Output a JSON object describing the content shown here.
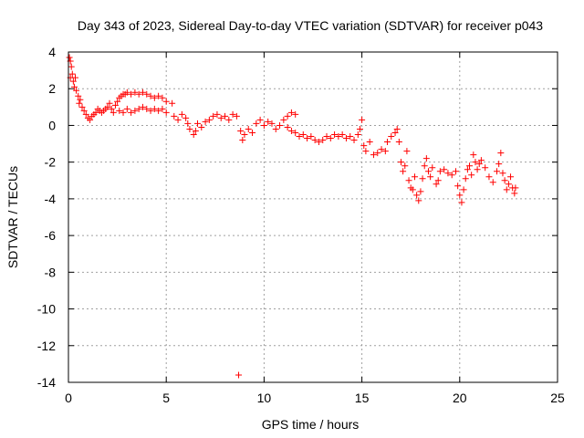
{
  "chart_data": {
    "type": "scatter",
    "title": "Day 343 of 2023, Sidereal Day-to-day VTEC variation (SDTVAR) for receiver p043",
    "xlabel": "GPS time / hours",
    "ylabel": "SDTVAR / TECUs",
    "xlim": [
      0,
      25
    ],
    "ylim": [
      -14,
      4
    ],
    "x_ticks": [
      0,
      5,
      10,
      15,
      20,
      25
    ],
    "y_ticks": [
      4,
      2,
      0,
      -2,
      -4,
      -6,
      -8,
      -10,
      -12,
      -14
    ],
    "grid": true,
    "marker": "+",
    "series_color": "#ff0000",
    "series": [
      {
        "name": "SDTVAR",
        "points": [
          [
            0.05,
            3.7
          ],
          [
            0.1,
            3.5
          ],
          [
            0.15,
            3.2
          ],
          [
            0.1,
            2.6
          ],
          [
            0.2,
            2.8
          ],
          [
            0.25,
            2.4
          ],
          [
            0.3,
            2.1
          ],
          [
            0.35,
            2.6
          ],
          [
            0.4,
            1.9
          ],
          [
            0.5,
            1.6
          ],
          [
            0.55,
            1.2
          ],
          [
            0.6,
            1.4
          ],
          [
            0.7,
            1.0
          ],
          [
            0.8,
            0.8
          ],
          [
            0.9,
            0.6
          ],
          [
            1.0,
            0.4
          ],
          [
            1.1,
            0.3
          ],
          [
            1.2,
            0.5
          ],
          [
            1.3,
            0.6
          ],
          [
            1.4,
            0.7
          ],
          [
            1.5,
            0.9
          ],
          [
            1.6,
            0.8
          ],
          [
            1.7,
            0.7
          ],
          [
            1.8,
            0.8
          ],
          [
            1.9,
            0.9
          ],
          [
            2.0,
            1.0
          ],
          [
            2.1,
            1.2
          ],
          [
            2.2,
            0.9
          ],
          [
            2.3,
            0.7
          ],
          [
            2.4,
            1.1
          ],
          [
            2.5,
            1.3
          ],
          [
            2.6,
            1.5
          ],
          [
            2.7,
            1.6
          ],
          [
            2.8,
            1.7
          ],
          [
            2.9,
            1.7
          ],
          [
            3.0,
            1.8
          ],
          [
            3.2,
            1.7
          ],
          [
            3.4,
            1.8
          ],
          [
            3.6,
            1.7
          ],
          [
            3.8,
            1.8
          ],
          [
            4.0,
            1.7
          ],
          [
            4.2,
            1.6
          ],
          [
            4.4,
            1.5
          ],
          [
            4.6,
            1.6
          ],
          [
            4.8,
            1.5
          ],
          [
            2.6,
            0.8
          ],
          [
            2.8,
            0.7
          ],
          [
            3.0,
            0.9
          ],
          [
            3.2,
            0.7
          ],
          [
            3.4,
            0.8
          ],
          [
            3.6,
            0.9
          ],
          [
            3.8,
            1.0
          ],
          [
            4.0,
            0.9
          ],
          [
            4.2,
            0.8
          ],
          [
            4.4,
            0.9
          ],
          [
            4.6,
            0.8
          ],
          [
            4.8,
            0.9
          ],
          [
            5.0,
            0.7
          ],
          [
            5.0,
            1.3
          ],
          [
            5.3,
            1.2
          ],
          [
            5.4,
            0.5
          ],
          [
            5.6,
            0.3
          ],
          [
            5.8,
            0.6
          ],
          [
            6.0,
            0.4
          ],
          [
            6.1,
            0.1
          ],
          [
            6.2,
            -0.2
          ],
          [
            6.4,
            -0.5
          ],
          [
            6.5,
            -0.3
          ],
          [
            6.6,
            0.1
          ],
          [
            6.8,
            -0.1
          ],
          [
            7.0,
            0.2
          ],
          [
            7.2,
            0.3
          ],
          [
            7.4,
            0.5
          ],
          [
            7.6,
            0.6
          ],
          [
            7.8,
            0.4
          ],
          [
            8.0,
            0.5
          ],
          [
            8.2,
            0.3
          ],
          [
            8.4,
            0.6
          ],
          [
            8.6,
            0.5
          ],
          [
            8.8,
            -0.3
          ],
          [
            8.9,
            -0.8
          ],
          [
            9.0,
            -0.5
          ],
          [
            9.2,
            -0.2
          ],
          [
            9.4,
            -0.4
          ],
          [
            9.6,
            0.1
          ],
          [
            9.8,
            0.3
          ],
          [
            10.0,
            0.0
          ],
          [
            10.2,
            0.2
          ],
          [
            10.4,
            0.1
          ],
          [
            10.6,
            -0.2
          ],
          [
            10.8,
            0.0
          ],
          [
            11.0,
            0.3
          ],
          [
            11.2,
            0.5
          ],
          [
            11.4,
            0.7
          ],
          [
            11.6,
            0.6
          ],
          [
            11.2,
            -0.1
          ],
          [
            11.4,
            -0.3
          ],
          [
            11.6,
            -0.4
          ],
          [
            11.8,
            -0.6
          ],
          [
            12.0,
            -0.5
          ],
          [
            12.2,
            -0.7
          ],
          [
            12.4,
            -0.6
          ],
          [
            12.6,
            -0.8
          ],
          [
            12.8,
            -0.9
          ],
          [
            13.0,
            -0.8
          ],
          [
            13.2,
            -0.6
          ],
          [
            13.4,
            -0.7
          ],
          [
            13.6,
            -0.5
          ],
          [
            13.8,
            -0.6
          ],
          [
            14.0,
            -0.5
          ],
          [
            14.2,
            -0.7
          ],
          [
            14.4,
            -0.6
          ],
          [
            14.6,
            -0.8
          ],
          [
            14.8,
            -0.5
          ],
          [
            14.9,
            -0.2
          ],
          [
            15.0,
            0.3
          ],
          [
            15.1,
            -1.1
          ],
          [
            15.2,
            -1.4
          ],
          [
            15.4,
            -0.9
          ],
          [
            15.6,
            -1.6
          ],
          [
            15.8,
            -1.5
          ],
          [
            16.0,
            -1.3
          ],
          [
            16.2,
            -1.4
          ],
          [
            16.3,
            -0.9
          ],
          [
            16.5,
            -0.6
          ],
          [
            16.7,
            -0.4
          ],
          [
            16.8,
            -0.2
          ],
          [
            16.9,
            -0.9
          ],
          [
            17.0,
            -2.0
          ],
          [
            17.1,
            -2.5
          ],
          [
            17.2,
            -2.2
          ],
          [
            17.3,
            -1.4
          ],
          [
            17.4,
            -3.0
          ],
          [
            17.5,
            -3.4
          ],
          [
            17.6,
            -3.5
          ],
          [
            17.7,
            -2.8
          ],
          [
            17.8,
            -3.8
          ],
          [
            17.9,
            -4.1
          ],
          [
            18.0,
            -3.6
          ],
          [
            18.1,
            -2.9
          ],
          [
            18.2,
            -2.2
          ],
          [
            18.3,
            -1.8
          ],
          [
            18.4,
            -2.5
          ],
          [
            18.5,
            -2.8
          ],
          [
            18.6,
            -2.3
          ],
          [
            18.8,
            -3.2
          ],
          [
            18.9,
            -3.0
          ],
          [
            19.0,
            -2.5
          ],
          [
            19.2,
            -2.4
          ],
          [
            19.4,
            -2.6
          ],
          [
            19.6,
            -2.7
          ],
          [
            19.8,
            -2.5
          ],
          [
            19.9,
            -3.3
          ],
          [
            20.0,
            -3.8
          ],
          [
            20.1,
            -4.2
          ],
          [
            20.2,
            -3.5
          ],
          [
            20.3,
            -2.9
          ],
          [
            20.4,
            -2.4
          ],
          [
            20.5,
            -2.2
          ],
          [
            20.6,
            -2.7
          ],
          [
            20.7,
            -1.6
          ],
          [
            20.8,
            -2.0
          ],
          [
            20.9,
            -2.4
          ],
          [
            21.0,
            -2.1
          ],
          [
            21.1,
            -1.9
          ],
          [
            21.3,
            -2.3
          ],
          [
            21.5,
            -2.8
          ],
          [
            21.7,
            -3.1
          ],
          [
            21.9,
            -2.5
          ],
          [
            22.0,
            -2.1
          ],
          [
            22.1,
            -1.5
          ],
          [
            22.2,
            -2.6
          ],
          [
            22.3,
            -3.0
          ],
          [
            22.4,
            -3.5
          ],
          [
            22.5,
            -3.2
          ],
          [
            22.6,
            -2.8
          ],
          [
            22.7,
            -3.4
          ],
          [
            22.8,
            -3.7
          ],
          [
            22.85,
            -3.4
          ],
          [
            8.7,
            -13.6
          ]
        ]
      }
    ]
  }
}
